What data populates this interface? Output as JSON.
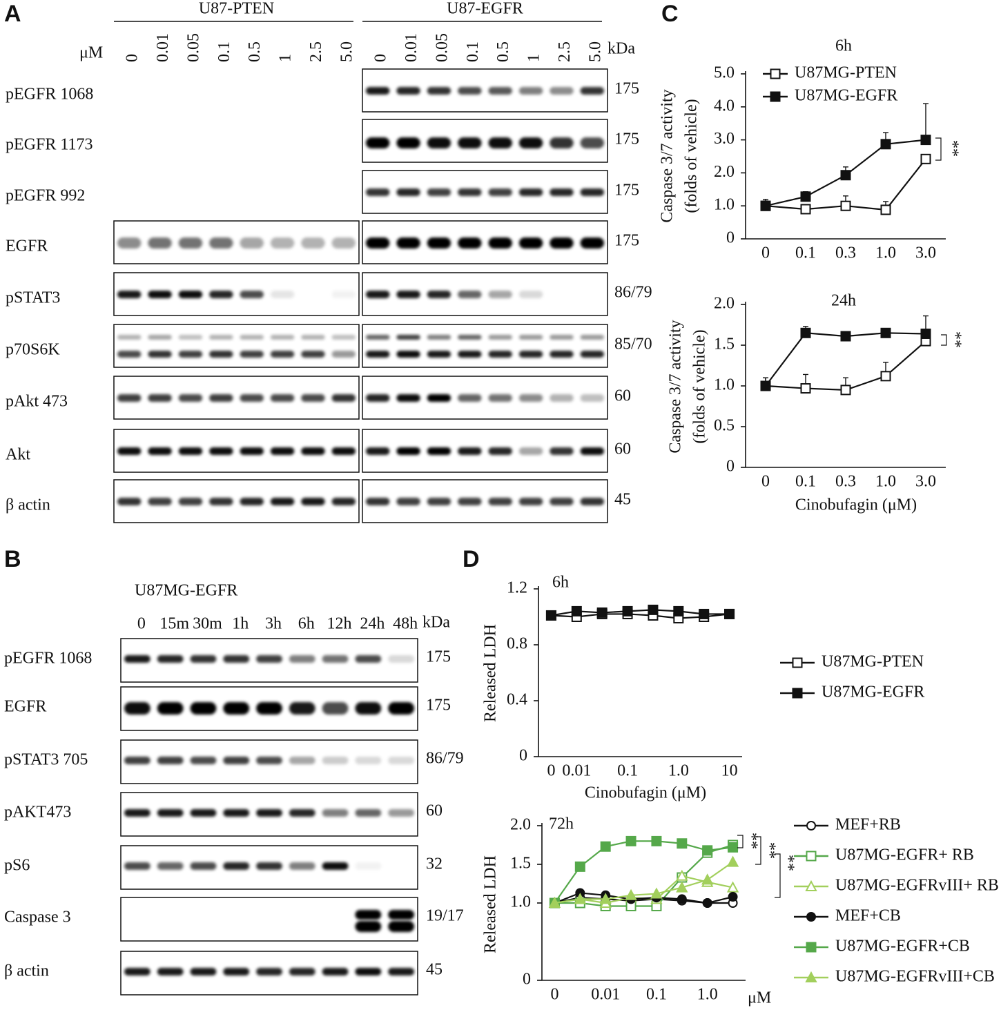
{
  "panel_a": {
    "letter": "A",
    "groups": [
      "U87-PTEN",
      "U87-EGFR"
    ],
    "unit": "μM",
    "concentrations": [
      "0",
      "0.01",
      "0.05",
      "0.1",
      "0.5",
      "1",
      "2.5",
      "5.0"
    ],
    "kda_header": "kDa",
    "rows": [
      {
        "label": "pEGFR 1068",
        "kda": "175"
      },
      {
        "label": "pEGFR 1173",
        "kda": "175"
      },
      {
        "label": "pEGFR 992",
        "kda": "175"
      },
      {
        "label": "EGFR",
        "kda": "175"
      },
      {
        "label": "pSTAT3",
        "kda": "86/79"
      },
      {
        "label": "p70S6K",
        "kda": "85/70"
      },
      {
        "label": "pAkt 473",
        "kda": "60"
      },
      {
        "label": "Akt",
        "kda": "60"
      },
      {
        "label": "β actin",
        "kda": "45"
      }
    ]
  },
  "panel_b": {
    "letter": "B",
    "cell_line": "U87MG-EGFR",
    "times": [
      "0",
      "15m",
      "30m",
      "1h",
      "3h",
      "6h",
      "12h",
      "24h",
      "48h"
    ],
    "kda_header": "kDa",
    "rows": [
      {
        "label": "pEGFR 1068",
        "kda": "175"
      },
      {
        "label": "EGFR",
        "kda": "175"
      },
      {
        "label": "pSTAT3 705",
        "kda": "86/79"
      },
      {
        "label": "pAKT473",
        "kda": "60"
      },
      {
        "label": "pS6",
        "kda": "32"
      },
      {
        "label": "Caspase 3",
        "kda": "19/17"
      },
      {
        "label": "β actin",
        "kda": "45"
      }
    ]
  },
  "panel_c_letter": "C",
  "panel_d_letter": "D",
  "chart_data": [
    {
      "type": "line",
      "title": "6h",
      "ylabel": [
        "Caspase 3/7 activity",
        "(folds of vehicle)"
      ],
      "categories": [
        "0",
        "0.1",
        "0.3",
        "1.0",
        "3.0"
      ],
      "ylim": [
        0,
        5
      ],
      "yticks": [
        0,
        {
          "value": 1,
          "label": "1.0"
        },
        {
          "value": 2,
          "label": "2.0"
        },
        {
          "value": 3,
          "label": "3.0"
        },
        {
          "value": 4,
          "label": "4.0"
        },
        {
          "value": 5,
          "label": "5.0"
        }
      ],
      "legend": "upper left",
      "annotations": [
        "**"
      ],
      "series": [
        {
          "name": "U87MG-PTEN",
          "color": "#111111",
          "marker": "square",
          "filled": false,
          "values": [
            1.0,
            0.9,
            1.0,
            0.88,
            2.42
          ],
          "errors": [
            0.2,
            0.1,
            0.3,
            0.25,
            0
          ]
        },
        {
          "name": "U87MG-EGFR",
          "color": "#111111",
          "marker": "square",
          "filled": true,
          "values": [
            1.0,
            1.28,
            1.93,
            2.87,
            3.0
          ],
          "errors": [
            0.15,
            0.15,
            0.25,
            0.35,
            1.1
          ]
        }
      ]
    },
    {
      "type": "line",
      "title": "24h",
      "ylabel": [
        "Caspase 3/7 activity",
        "(folds of vehicle)"
      ],
      "xlabel": "Cinobufagin (μM)",
      "categories": [
        "0",
        "0.1",
        "0.3",
        "1.0",
        "3.0"
      ],
      "ylim": [
        0,
        2
      ],
      "yticks": [
        0,
        0.5,
        {
          "value": 1,
          "label": "1.0"
        },
        1.5,
        {
          "value": 2,
          "label": "2.0"
        }
      ],
      "annotations": [
        "**"
      ],
      "series": [
        {
          "name": "U87MG-PTEN",
          "color": "#111111",
          "marker": "square",
          "filled": false,
          "values": [
            1.0,
            0.97,
            0.95,
            1.12,
            1.55
          ],
          "errors": [
            0.1,
            0.17,
            0.15,
            0.17,
            0.05
          ]
        },
        {
          "name": "U87MG-EGFR",
          "color": "#111111",
          "marker": "square",
          "filled": true,
          "values": [
            1.0,
            1.65,
            1.61,
            1.65,
            1.64
          ],
          "errors": [
            0.1,
            0.08,
            0.05,
            0.05,
            0.22
          ]
        }
      ]
    },
    {
      "type": "line",
      "title": "6h",
      "ylabel": [
        "Released LDH"
      ],
      "xlabel": "Cinobufagin (μM)",
      "categories": [
        "0",
        "0.01",
        null,
        "0.1",
        null,
        "1.0",
        null,
        "10"
      ],
      "ylim": [
        0,
        1.2
      ],
      "yticks": [
        0,
        0.4,
        0.8,
        1.2
      ],
      "legend": "outside right",
      "series": [
        {
          "name": "U87MG-PTEN",
          "color": "#111111",
          "marker": "square",
          "filled": false,
          "values": [
            1.01,
            1.0,
            1.02,
            1.02,
            1.01,
            0.99,
            1.0,
            1.02
          ]
        },
        {
          "name": "U87MG-EGFR",
          "color": "#111111",
          "marker": "square",
          "filled": true,
          "values": [
            1.01,
            1.04,
            1.03,
            1.04,
            1.05,
            1.04,
            1.02,
            1.02
          ]
        }
      ]
    },
    {
      "type": "line",
      "title": "72h",
      "ylabel": [
        "Released LDH"
      ],
      "xlabel": "μM",
      "categories": [
        "0",
        null,
        "0.01",
        null,
        "0.1",
        null,
        "1.0",
        null
      ],
      "ylim": [
        0,
        2
      ],
      "yticks": [
        0,
        {
          "value": 1,
          "label": "1.0"
        },
        1.5,
        {
          "value": 2,
          "label": "2.0"
        }
      ],
      "legend": "outside right",
      "annotations": [
        "**",
        "**",
        "**"
      ],
      "series": [
        {
          "name": "MEF+RB",
          "color": "#111111",
          "marker": "circle",
          "filled": false,
          "values": [
            1.0,
            1.07,
            1.05,
            1.03,
            1.05,
            1.03,
            1.0,
            1.0
          ]
        },
        {
          "name": "U87MG-EGFR+ RB",
          "color": "#55a84a",
          "marker": "square",
          "filled": false,
          "values": [
            1.0,
            1.0,
            0.96,
            0.96,
            0.96,
            1.33,
            1.65,
            1.75
          ]
        },
        {
          "name": "U87MG-EGFRvIII+ RB",
          "color": "#a2cf5c",
          "marker": "triangle",
          "filled": false,
          "values": [
            1.0,
            1.05,
            1.0,
            1.07,
            1.05,
            1.35,
            1.27,
            1.2
          ]
        },
        {
          "name": "MEF+CB",
          "color": "#111111",
          "marker": "circle",
          "filled": true,
          "values": [
            1.0,
            1.13,
            1.1,
            1.05,
            1.07,
            1.05,
            1.0,
            1.08
          ]
        },
        {
          "name": "U87MG-EGFR+CB",
          "color": "#55a84a",
          "marker": "square",
          "filled": true,
          "values": [
            1.0,
            1.47,
            1.73,
            1.8,
            1.8,
            1.77,
            1.68,
            1.72
          ]
        },
        {
          "name": "U87MG-EGFRvIII+CB",
          "color": "#a2cf5c",
          "marker": "triangle",
          "filled": true,
          "values": [
            1.0,
            1.05,
            1.05,
            1.1,
            1.12,
            1.2,
            1.3,
            1.53
          ]
        }
      ]
    }
  ]
}
